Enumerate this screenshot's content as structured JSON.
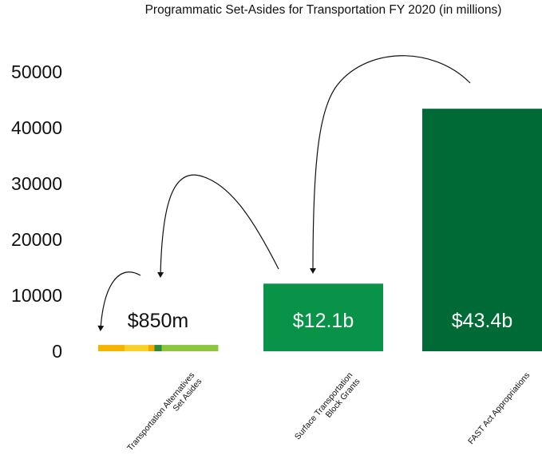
{
  "chart_data": {
    "type": "bar",
    "title": "Programmatic Set-Asides for Transportation FY 2020 (in millions)",
    "xlabel": "",
    "ylabel": "",
    "ylim": [
      0,
      50000
    ],
    "yticks": [
      "0",
      "10000",
      "20000",
      "30000",
      "40000",
      "50000"
    ],
    "yticks_values": [
      0,
      10000,
      20000,
      30000,
      40000,
      50000
    ],
    "categories": [
      [
        "Transportation Alternatives",
        "Set Asides"
      ],
      [
        "Surface Transportation",
        "Block Grants"
      ],
      [
        "FAST Act Appropriations"
      ]
    ],
    "values": [
      850,
      12100,
      43400
    ],
    "data_labels": [
      "$850m",
      "$12.1b",
      "$43.4b"
    ],
    "grid": false,
    "legend": "none",
    "colors": {
      "tap_bar_segments": [
        "#f5b400",
        "#f7d12a",
        "#f2a900",
        "#2e8b3c",
        "#8cc63f"
      ],
      "stbg_bar": "#099348",
      "fast_bar": "#006a36",
      "label_dark": "#111111",
      "label_light": "#ffffff",
      "arrows": "#111111"
    },
    "annotations": {
      "arrows": [
        {
          "from": "FAST Act Appropriations",
          "to": "Surface Transportation Block Grants"
        },
        {
          "from": "Surface Transportation Block Grants",
          "to": "Transportation Alternatives Set Asides"
        },
        {
          "from": "Transportation Alternatives Set Asides",
          "to": "Transportation Alternatives Set Asides"
        }
      ]
    }
  }
}
